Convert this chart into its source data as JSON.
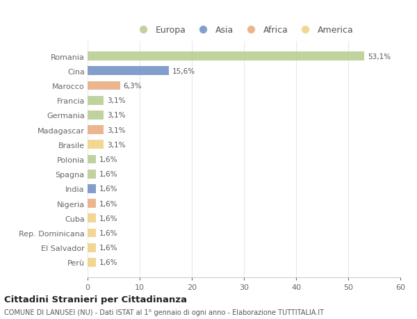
{
  "countries": [
    "Romania",
    "Cina",
    "Marocco",
    "Francia",
    "Germania",
    "Madagascar",
    "Brasile",
    "Polonia",
    "Spagna",
    "India",
    "Nigeria",
    "Cuba",
    "Rep. Dominicana",
    "El Salvador",
    "Perù"
  ],
  "values": [
    53.1,
    15.6,
    6.3,
    3.1,
    3.1,
    3.1,
    3.1,
    1.6,
    1.6,
    1.6,
    1.6,
    1.6,
    1.6,
    1.6,
    1.6
  ],
  "labels": [
    "53,1%",
    "15,6%",
    "6,3%",
    "3,1%",
    "3,1%",
    "3,1%",
    "3,1%",
    "1,6%",
    "1,6%",
    "1,6%",
    "1,6%",
    "1,6%",
    "1,6%",
    "1,6%",
    "1,6%"
  ],
  "colors": [
    "#b5cc8e",
    "#6e8dc4",
    "#e8a87c",
    "#b5cc8e",
    "#b5cc8e",
    "#e8a87c",
    "#f0d080",
    "#b5cc8e",
    "#b5cc8e",
    "#6e8dc4",
    "#e8a87c",
    "#f0d080",
    "#f0d080",
    "#f0d080",
    "#f0d080"
  ],
  "legend_labels": [
    "Europa",
    "Asia",
    "Africa",
    "America"
  ],
  "legend_colors": [
    "#b5cc8e",
    "#6e8dc4",
    "#e8a87c",
    "#f0d080"
  ],
  "title": "Cittadini Stranieri per Cittadinanza",
  "subtitle": "COMUNE DI LANUSEI (NU) - Dati ISTAT al 1° gennaio di ogni anno - Elaborazione TUTTITALIA.IT",
  "xlim": [
    0,
    60
  ],
  "xticks": [
    0,
    10,
    20,
    30,
    40,
    50,
    60
  ],
  "background_color": "#ffffff",
  "grid_color": "#e8e8e8",
  "bar_height": 0.6
}
